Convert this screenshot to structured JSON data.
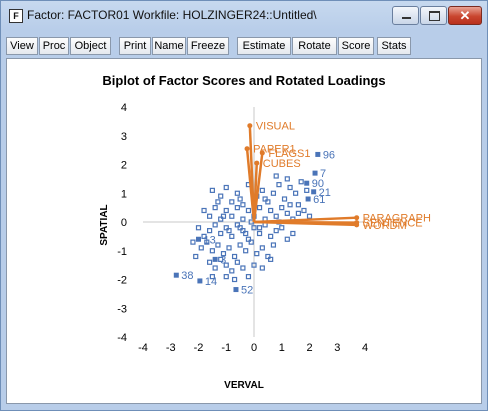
{
  "window": {
    "title": "Factor: FACTOR01   Workfile: HOLZINGER24::Untitled\\",
    "app_icon_letter": "F",
    "controls": {
      "minimize_glyph": "",
      "maximize_glyph": "",
      "close_glyph": "✕"
    }
  },
  "toolbar": [
    "View",
    "Proc",
    "Object",
    "Print",
    "Name",
    "Freeze",
    "Estimate",
    "Rotate",
    "Score",
    "Stats"
  ],
  "chart_data": {
    "type": "scatter",
    "title": "Biplot of Factor Scores and Rotated Loadings",
    "xlabel": "VERVAL",
    "ylabel": "SPATIAL",
    "xlim": [
      -4,
      4
    ],
    "ylim": [
      -4,
      4
    ],
    "xticks": [
      -4,
      -3,
      -2,
      -1,
      0,
      1,
      2,
      3,
      4
    ],
    "yticks": [
      -4,
      -3,
      -2,
      -1,
      0,
      1,
      2,
      3,
      4
    ],
    "score_color": "#4a74b8",
    "loading_color": "#e07b2a",
    "loadings": [
      {
        "name": "VISUAL",
        "x": -0.15,
        "y": 3.35
      },
      {
        "name": "PAPER1",
        "x": -0.25,
        "y": 2.55
      },
      {
        "name": "FLAGS1",
        "x": 0.3,
        "y": 2.4
      },
      {
        "name": "CUBES",
        "x": 0.1,
        "y": 2.05
      },
      {
        "name": "PARAGRAPH",
        "x": 3.7,
        "y": 0.15
      },
      {
        "name": "SENTENCE",
        "x": 3.7,
        "y": -0.02
      },
      {
        "name": "WORDM",
        "x": 3.7,
        "y": -0.1
      }
    ],
    "labeled_scores": [
      {
        "label": "96",
        "x": 2.3,
        "y": 2.35
      },
      {
        "label": "7",
        "x": 2.2,
        "y": 1.7
      },
      {
        "label": "90",
        "x": 1.9,
        "y": 1.35
      },
      {
        "label": "21",
        "x": 2.15,
        "y": 1.05
      },
      {
        "label": "61",
        "x": 1.95,
        "y": 0.8
      },
      {
        "label": "13",
        "x": -2.0,
        "y": -0.6
      },
      {
        "label": "3",
        "x": -1.4,
        "y": -1.3
      },
      {
        "label": "38",
        "x": -2.8,
        "y": -1.85
      },
      {
        "label": "14",
        "x": -1.95,
        "y": -2.05
      },
      {
        "label": "52",
        "x": -0.65,
        "y": -2.35
      }
    ],
    "scores": [
      [
        -1.5,
        1.1
      ],
      [
        -1.2,
        0.9
      ],
      [
        -1.0,
        1.2
      ],
      [
        -0.8,
        0.7
      ],
      [
        -0.6,
        1.0
      ],
      [
        -0.4,
        0.6
      ],
      [
        -0.2,
        1.3
      ],
      [
        0.1,
        0.9
      ],
      [
        0.3,
        1.1
      ],
      [
        0.5,
        0.7
      ],
      [
        0.7,
        1.0
      ],
      [
        0.9,
        1.3
      ],
      [
        1.1,
        0.8
      ],
      [
        1.3,
        1.2
      ],
      [
        1.5,
        1.0
      ],
      [
        1.7,
        1.4
      ],
      [
        1.2,
        1.5
      ],
      [
        0.8,
        1.6
      ],
      [
        1.6,
        0.6
      ],
      [
        1.9,
        1.1
      ],
      [
        -1.8,
        0.4
      ],
      [
        -1.6,
        0.2
      ],
      [
        -1.4,
        0.5
      ],
      [
        -1.2,
        0.1
      ],
      [
        -1.0,
        0.4
      ],
      [
        -0.8,
        0.2
      ],
      [
        -0.6,
        0.5
      ],
      [
        -0.4,
        0.1
      ],
      [
        -0.2,
        0.4
      ],
      [
        0.0,
        0.2
      ],
      [
        0.2,
        0.5
      ],
      [
        0.4,
        0.1
      ],
      [
        0.6,
        0.4
      ],
      [
        0.8,
        0.2
      ],
      [
        1.0,
        0.5
      ],
      [
        1.2,
        0.3
      ],
      [
        1.4,
        0.1
      ],
      [
        1.6,
        0.3
      ],
      [
        1.8,
        0.4
      ],
      [
        2.0,
        0.2
      ],
      [
        -2.0,
        -0.2
      ],
      [
        -1.8,
        -0.5
      ],
      [
        -1.6,
        -0.3
      ],
      [
        -1.4,
        -0.1
      ],
      [
        -1.2,
        -0.4
      ],
      [
        -1.0,
        -0.2
      ],
      [
        -0.8,
        -0.5
      ],
      [
        -0.6,
        -0.1
      ],
      [
        -0.4,
        -0.3
      ],
      [
        -0.2,
        -0.6
      ],
      [
        0.0,
        -0.2
      ],
      [
        0.2,
        -0.4
      ],
      [
        0.4,
        -0.1
      ],
      [
        0.6,
        -0.5
      ],
      [
        0.8,
        -0.3
      ],
      [
        1.0,
        -0.2
      ],
      [
        1.2,
        -0.6
      ],
      [
        1.4,
        -0.4
      ],
      [
        -2.2,
        -0.7
      ],
      [
        -1.9,
        -0.9
      ],
      [
        -1.7,
        -0.7
      ],
      [
        -1.5,
        -1.0
      ],
      [
        -1.3,
        -0.8
      ],
      [
        -1.1,
        -1.1
      ],
      [
        -0.9,
        -0.9
      ],
      [
        -0.7,
        -1.2
      ],
      [
        -0.5,
        -0.8
      ],
      [
        -0.3,
        -1.0
      ],
      [
        -0.1,
        -0.7
      ],
      [
        0.1,
        -1.1
      ],
      [
        0.3,
        -0.9
      ],
      [
        0.5,
        -1.2
      ],
      [
        0.7,
        -0.8
      ],
      [
        -1.6,
        -1.4
      ],
      [
        -1.4,
        -1.6
      ],
      [
        -1.2,
        -1.3
      ],
      [
        -1.0,
        -1.5
      ],
      [
        -0.8,
        -1.7
      ],
      [
        -0.6,
        -1.4
      ],
      [
        -0.4,
        -1.6
      ],
      [
        -0.2,
        -1.9
      ],
      [
        0.0,
        -1.5
      ],
      [
        0.3,
        -1.6
      ],
      [
        -1.0,
        -1.9
      ],
      [
        -0.7,
        -2.0
      ],
      [
        -1.5,
        -1.9
      ],
      [
        0.6,
        -1.3
      ],
      [
        -2.1,
        -1.2
      ],
      [
        -0.5,
        0.8
      ],
      [
        0.0,
        0.7
      ],
      [
        -1.3,
        0.7
      ],
      [
        0.4,
        0.8
      ],
      [
        -0.9,
        -0.3
      ],
      [
        -0.3,
        -0.4
      ],
      [
        -1.1,
        0.2
      ],
      [
        0.9,
        0.0
      ],
      [
        1.3,
        0.6
      ],
      [
        -0.1,
        0.0
      ],
      [
        0.2,
        -0.2
      ],
      [
        -0.5,
        -0.2
      ]
    ]
  }
}
